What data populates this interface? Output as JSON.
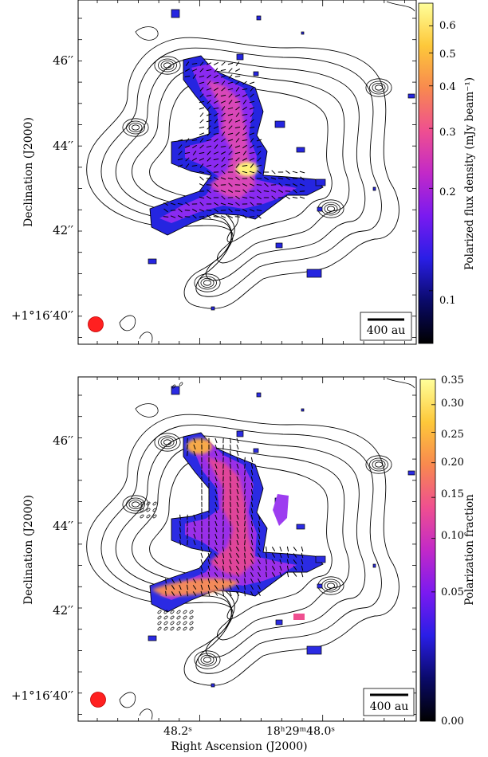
{
  "colors": {
    "map_background": "#ffffff",
    "contour": "#000000",
    "beam": "#ff2020",
    "colormap_stops": [
      "#000000",
      "#0a0a6a",
      "#2a1ee6",
      "#7a1af0",
      "#c229c8",
      "#ef4f90",
      "#f8894f",
      "#fdc83a",
      "#ffff9a"
    ]
  },
  "chart_data": [
    {
      "type": "heatmap",
      "panel": "top",
      "quantity": "polarized flux density",
      "ylabel": "Declination (J2000)",
      "ytick_labels": [
        "46′′",
        "44′′",
        "42′′",
        "+1°16′40′′"
      ],
      "colorbar_label": "Polarized flux density (mJy beam⁻¹)",
      "colorbar_scale": "log",
      "colorbar_ticks": [
        0.6,
        0.5,
        0.4,
        0.3,
        0.2,
        0.1
      ],
      "colorbar_tick_labels": [
        "0.6",
        "0.5",
        "0.4",
        "0.3",
        "0.2",
        "0.1"
      ],
      "colorbar_range": [
        0.07,
        0.7
      ],
      "scalebar_label": "400 au",
      "overlays": [
        "Stokes I contours",
        "magnetic field segments",
        "synthesized beam"
      ]
    },
    {
      "type": "heatmap",
      "panel": "bottom",
      "quantity": "polarization fraction",
      "ylabel": "Declination (J2000)",
      "xlabel": "Right Ascension (J2000)",
      "xtick_labels": [
        "48.2ˢ",
        "18ʰ29ᵐ48.0ˢ"
      ],
      "ytick_labels": [
        "46′′",
        "44′′",
        "42′′",
        "+1°16′40′′"
      ],
      "colorbar_label": "Polarization fraction",
      "colorbar_scale": "sqrt",
      "colorbar_ticks": [
        0.35,
        0.3,
        0.25,
        0.2,
        0.15,
        0.1,
        0.05,
        0.0
      ],
      "colorbar_tick_labels": [
        "0.35",
        "0.30",
        "0.25",
        "0.20",
        "0.15",
        "0.10",
        "0.05",
        "0.00"
      ],
      "colorbar_range": [
        0.0,
        0.35
      ],
      "scalebar_label": "400 au",
      "overlays": [
        "Stokes I contours",
        "magnetic field segments",
        "synthesized beam"
      ]
    }
  ]
}
